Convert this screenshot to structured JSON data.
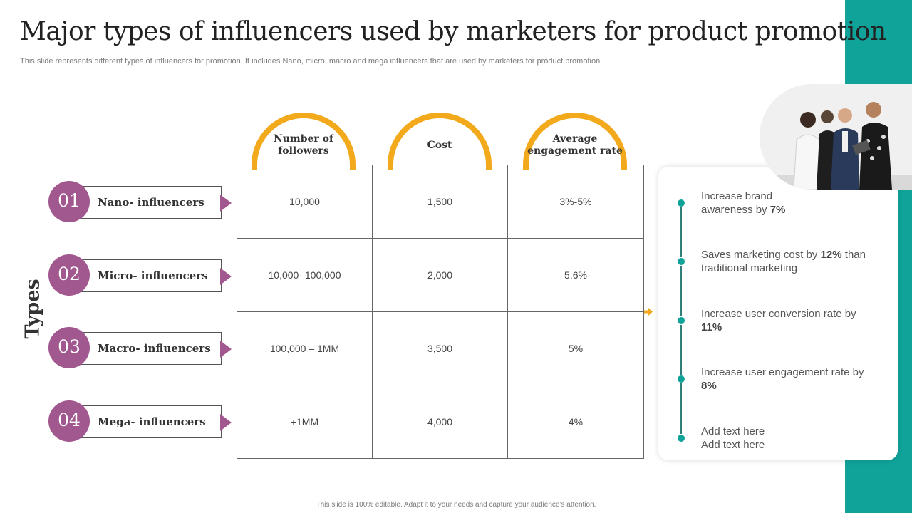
{
  "slide": {
    "title": "Major types of influencers used by marketers for product promotion",
    "subtitle": "This slide represents different types of influencers for promotion. It includes Nano, micro, macro and mega influencers that are used by marketers for product promotion.",
    "footer": "This slide is 100% editable.  Adapt it to your needs and capture your audience’s attention.",
    "side_label": "Types"
  },
  "colors": {
    "accent_purple": "#a1588f",
    "accent_orange": "#f2aa1c",
    "accent_teal": "#0fa39a"
  },
  "columns": [
    "Number of followers",
    "Cost",
    "Average engagement rate"
  ],
  "types": [
    {
      "number": "01",
      "label": "Nano- influencers"
    },
    {
      "number": "02",
      "label": "Micro- influencers"
    },
    {
      "number": "03",
      "label": "Macro- influencers"
    },
    {
      "number": "04",
      "label": "Mega- influencers"
    }
  ],
  "table": [
    [
      "10,000",
      "1,500",
      "3%-5%"
    ],
    [
      "10,000- 100,000",
      "2,000",
      "5.6%"
    ],
    [
      "100,000 – 1MM",
      "3,500",
      "5%"
    ],
    [
      "+1MM",
      "4,000",
      "4%"
    ]
  ],
  "benefits": [
    {
      "text": "Increase brand awareness by ",
      "highlight": "7%"
    },
    {
      "text": "Saves marketing cost by ",
      "highlight": "12%",
      "suffix": " than traditional marketing"
    },
    {
      "text": "Increase user conversion rate by ",
      "highlight": "11%"
    },
    {
      "text": "Increase user engagement rate by ",
      "highlight": "8%"
    },
    {
      "text": "Add text here Add text here"
    }
  ],
  "photo_icon": "business-team-photo"
}
